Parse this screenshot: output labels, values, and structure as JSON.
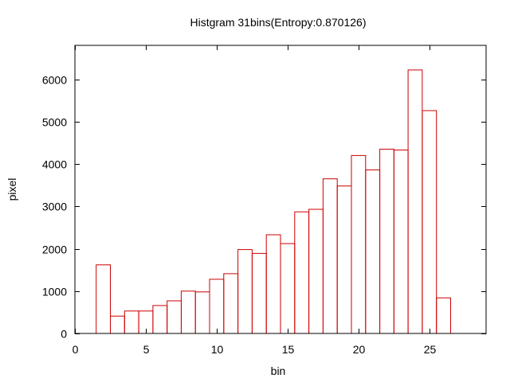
{
  "chart_data": {
    "type": "bar",
    "title": "Histgram 31bins(Entropy:0.870126)",
    "xlabel": "bin",
    "ylabel": "pixel",
    "xlim": [
      0,
      29
    ],
    "ylim": [
      0,
      6800
    ],
    "bin_width": 1,
    "grid": false,
    "legend": "none",
    "x_ticks": [
      0,
      5,
      10,
      15,
      20,
      25
    ],
    "y_ticks": [
      0,
      1000,
      2000,
      3000,
      4000,
      5000,
      6000
    ],
    "bar_color": "#cc0000",
    "axis_color": "#000000",
    "bins": [
      2,
      3,
      4,
      5,
      6,
      7,
      8,
      9,
      10,
      11,
      12,
      13,
      14,
      15,
      16,
      17,
      18,
      19,
      20,
      21,
      22,
      23,
      24,
      25,
      26
    ],
    "values": [
      1620,
      410,
      530,
      530,
      660,
      770,
      1000,
      980,
      1280,
      1410,
      1980,
      1890,
      2330,
      2120,
      2870,
      2930,
      3650,
      3480,
      4200,
      3860,
      4350,
      4330,
      6220,
      5260,
      840
    ]
  }
}
